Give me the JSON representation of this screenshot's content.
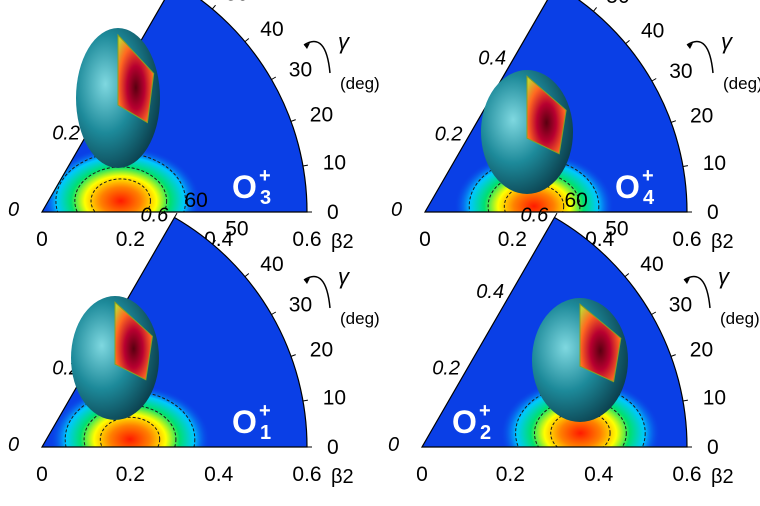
{
  "chart_data": [
    {
      "type": "heatmap",
      "state_label": "O",
      "state_superscript": "+",
      "state_subscript": "3",
      "x_ticks": [
        "0",
        "0.2",
        "0.4",
        "0.6"
      ],
      "r_ticks": [
        "0",
        "0.2"
      ],
      "gamma_ticks": [
        "0",
        "10",
        "20",
        "30",
        "40",
        "50",
        "60"
      ],
      "xlabel": "β2",
      "gamma_symbol": "γ",
      "gamma_unit": "(deg)",
      "peak_beta": 0.18,
      "peak_gamma_deg": 8,
      "colors": [
        "#0a3fe6",
        "#00c8ff",
        "#00e070",
        "#ffff00",
        "#ff8000",
        "#ff1a00"
      ]
    },
    {
      "type": "heatmap",
      "state_label": "O",
      "state_superscript": "+",
      "state_subscript": "4",
      "x_ticks": [
        "0",
        "0.2",
        "0.4",
        "0.6"
      ],
      "r_ticks": [
        "0",
        "0.2",
        "0.4",
        "0.6"
      ],
      "gamma_ticks": [
        "0",
        "10",
        "20",
        "30",
        "40",
        "50",
        "60"
      ],
      "xlabel": "β2",
      "gamma_symbol": "γ",
      "gamma_unit": "(deg)",
      "peak_beta": 0.25,
      "peak_gamma_deg": 3,
      "colors": [
        "#0a3fe6",
        "#00c8ff",
        "#00e070",
        "#ffff00",
        "#ff8000",
        "#ff1a00"
      ]
    },
    {
      "type": "heatmap",
      "state_label": "O",
      "state_superscript": "+",
      "state_subscript": "1",
      "x_ticks": [
        "0",
        "0.2",
        "0.4",
        "0.6"
      ],
      "r_ticks": [
        "0",
        "0.2",
        "0.6"
      ],
      "gamma_ticks": [
        "0",
        "10",
        "20",
        "30",
        "40",
        "50",
        "60"
      ],
      "xlabel": "β2",
      "gamma_symbol": "γ",
      "gamma_unit": "(deg)",
      "peak_beta": 0.2,
      "peak_gamma_deg": 5,
      "colors": [
        "#0a3fe6",
        "#00c8ff",
        "#00e070",
        "#ffff00",
        "#ff8000",
        "#ff1a00"
      ]
    },
    {
      "type": "heatmap",
      "state_label": "O",
      "state_superscript": "+",
      "state_subscript": "2",
      "x_ticks": [
        "0",
        "0.2",
        "0.4",
        "0.6"
      ],
      "r_ticks": [
        "0",
        "0.2",
        "0.4",
        "0.6"
      ],
      "gamma_ticks": [
        "0",
        "10",
        "20",
        "30",
        "40",
        "50",
        "60"
      ],
      "xlabel": "β2",
      "gamma_symbol": "γ",
      "gamma_unit": "(deg)",
      "peak_beta": 0.36,
      "peak_gamma_deg": 5,
      "colors": [
        "#0a3fe6",
        "#00c8ff",
        "#00e070",
        "#ffff00",
        "#ff8000",
        "#ff1a00"
      ]
    }
  ]
}
